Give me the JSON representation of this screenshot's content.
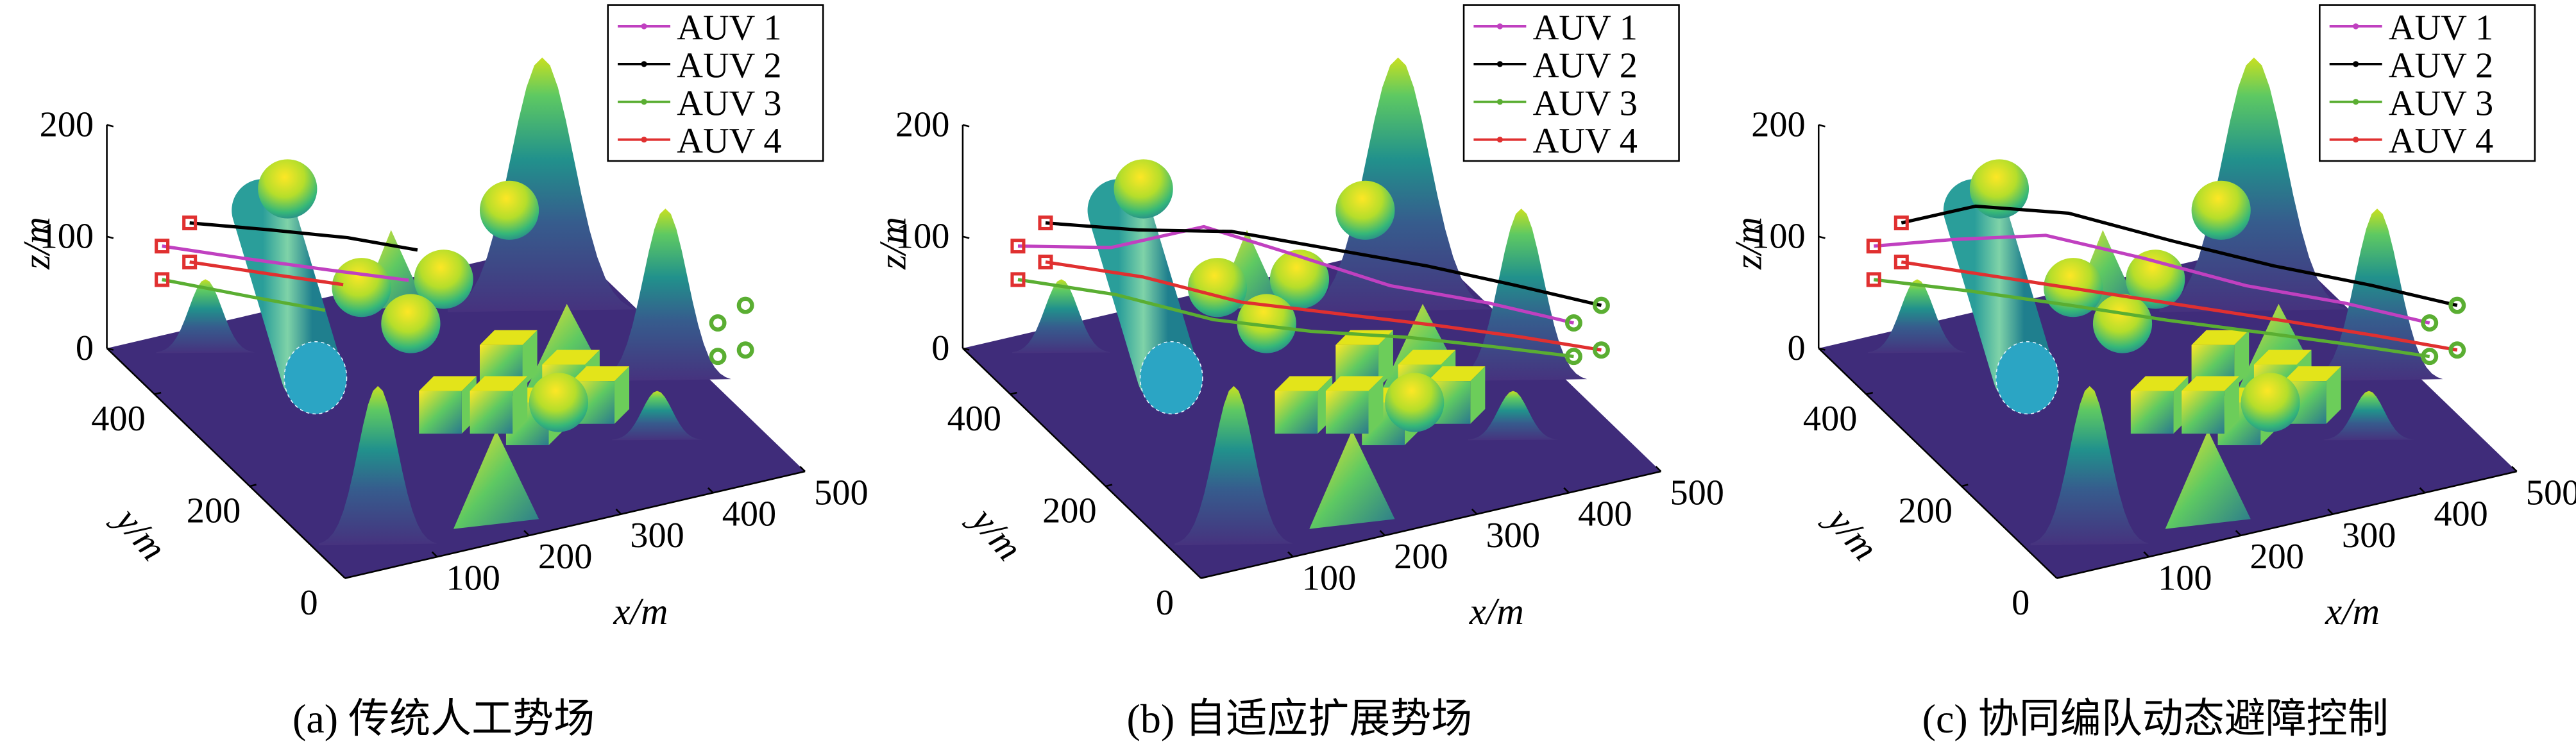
{
  "chart_data": [
    {
      "type": "line3d",
      "caption": "(a) 传统人工势场",
      "xlabel": "x/m",
      "ylabel": "y/m",
      "zlabel": "z/m",
      "xlim": [
        0,
        500
      ],
      "ylim": [
        0,
        500
      ],
      "zlim": [
        0,
        200
      ],
      "xticks": [
        100,
        200,
        300,
        400,
        500
      ],
      "yticks": [
        0,
        200,
        400
      ],
      "zticks": [
        0,
        100,
        200
      ],
      "legend": "upper right",
      "series": [
        {
          "name": "AUV 1",
          "color": "#c040c0",
          "x": [
            60,
            120,
            180,
            240
          ],
          "y": [
            500,
            440,
            380,
            330
          ],
          "z": [
            80,
            82,
            85,
            85
          ],
          "goal": [
            457,
            100,
            100
          ]
        },
        {
          "name": "AUV 2",
          "color": "#000000",
          "x": [
            90,
            150,
            210,
            260
          ],
          "y": [
            500,
            450,
            400,
            350
          ],
          "z": [
            95,
            98,
            100,
            100
          ],
          "goal": [
            487,
            100,
            110
          ]
        },
        {
          "name": "AUV 3",
          "color": "#5aae32",
          "x": [
            60,
            120,
            170
          ],
          "y": [
            500,
            430,
            370
          ],
          "z": [
            50,
            52,
            55
          ],
          "goal": [
            457,
            100,
            70
          ]
        },
        {
          "name": "AUV 4",
          "color": "#e03030",
          "x": [
            90,
            150,
            200
          ],
          "y": [
            500,
            440,
            390
          ],
          "z": [
            60,
            62,
            64
          ],
          "goal": [
            487,
            100,
            70
          ]
        }
      ]
    },
    {
      "type": "line3d",
      "caption": "(b) 自适应扩展势场",
      "xlabel": "x/m",
      "ylabel": "y/m",
      "zlabel": "z/m",
      "xlim": [
        0,
        500
      ],
      "ylim": [
        0,
        500
      ],
      "zlim": [
        0,
        200
      ],
      "xticks": [
        100,
        200,
        300,
        400,
        500
      ],
      "yticks": [
        0,
        200,
        400
      ],
      "zticks": [
        0,
        100,
        200
      ],
      "legend": "upper right",
      "series": [
        {
          "name": "AUV 1",
          "color": "#c040c0",
          "x": [
            60,
            130,
            200,
            260,
            330,
            400,
            457
          ],
          "y": [
            500,
            440,
            380,
            320,
            240,
            170,
            100
          ],
          "z": [
            80,
            90,
            120,
            110,
            100,
            100,
            100
          ],
          "goal": [
            457,
            100,
            100
          ]
        },
        {
          "name": "AUV 2",
          "color": "#000000",
          "x": [
            90,
            160,
            230,
            300,
            370,
            430,
            487
          ],
          "y": [
            500,
            440,
            380,
            310,
            240,
            170,
            100
          ],
          "z": [
            95,
            100,
            110,
            110,
            110,
            110,
            110
          ],
          "goal": [
            487,
            100,
            110
          ]
        },
        {
          "name": "AUV 3",
          "color": "#5aae32",
          "x": [
            60,
            130,
            200,
            270,
            340,
            400,
            457
          ],
          "y": [
            500,
            430,
            360,
            290,
            220,
            160,
            100
          ],
          "z": [
            50,
            52,
            45,
            50,
            60,
            65,
            70
          ],
          "goal": [
            457,
            100,
            70
          ]
        },
        {
          "name": "AUV 4",
          "color": "#e03030",
          "x": [
            90,
            160,
            230,
            300,
            370,
            430,
            487
          ],
          "y": [
            500,
            430,
            360,
            290,
            220,
            160,
            100
          ],
          "z": [
            60,
            62,
            55,
            60,
            65,
            68,
            70
          ],
          "goal": [
            487,
            100,
            70
          ]
        }
      ]
    },
    {
      "type": "line3d",
      "caption": "(c) 协同编队动态避障控制",
      "xlabel": "x/m",
      "ylabel": "y/m",
      "zlabel": "z/m",
      "xlim": [
        0,
        500
      ],
      "ylim": [
        0,
        500
      ],
      "zlim": [
        0,
        200
      ],
      "xticks": [
        100,
        200,
        300,
        400,
        500
      ],
      "yticks": [
        0,
        200,
        400
      ],
      "zticks": [
        0,
        100,
        200
      ],
      "legend": "upper right",
      "series": [
        {
          "name": "AUV 1",
          "color": "#c040c0",
          "x": [
            60,
            120,
            190,
            260,
            330,
            400,
            457
          ],
          "y": [
            500,
            450,
            390,
            320,
            240,
            170,
            100
          ],
          "z": [
            80,
            95,
            110,
            105,
            100,
            100,
            100
          ],
          "goal": [
            457,
            100,
            100
          ]
        },
        {
          "name": "AUV 2",
          "color": "#000000",
          "x": [
            90,
            150,
            220,
            290,
            360,
            430,
            487
          ],
          "y": [
            500,
            460,
            400,
            320,
            240,
            170,
            100
          ],
          "z": [
            95,
            115,
            120,
            115,
            112,
            110,
            110
          ],
          "goal": [
            487,
            100,
            110
          ]
        },
        {
          "name": "AUV 3",
          "color": "#5aae32",
          "x": [
            60,
            130,
            200,
            270,
            340,
            400,
            457
          ],
          "y": [
            500,
            430,
            360,
            290,
            220,
            160,
            100
          ],
          "z": [
            50,
            55,
            58,
            60,
            64,
            67,
            70
          ],
          "goal": [
            457,
            100,
            70
          ]
        },
        {
          "name": "AUV 4",
          "color": "#e03030",
          "x": [
            90,
            160,
            230,
            300,
            370,
            430,
            487
          ],
          "y": [
            500,
            430,
            360,
            290,
            220,
            160,
            100
          ],
          "z": [
            60,
            62,
            64,
            66,
            68,
            69,
            70
          ],
          "goal": [
            487,
            100,
            70
          ]
        }
      ]
    }
  ]
}
